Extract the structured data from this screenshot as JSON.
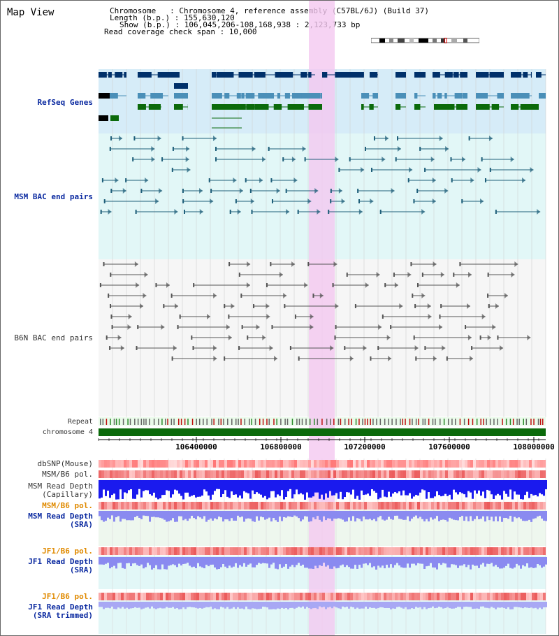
{
  "view_title": "Map View",
  "info": {
    "chromosome_line": "Chromosome   : Chromosome 4, reference assembly (C57BL/6J) (Build 37)",
    "length_line": "Length (b.p.) : 155,630,120",
    "show_line": "Show (b.p.) : 106,045,206-108,168,938 : 2,123,733 bp",
    "coverage_line": "Read coverage check span : 10,000"
  },
  "tracks": {
    "refseq": "RefSeq Genes",
    "msm_bac": "MSM BAC end pairs",
    "b6n_bac": "B6N BAC end pairs",
    "repeat": "Repeat",
    "chromosome": "chromosome 4",
    "dbsnp": "dbSNP(Mouse)",
    "msm_b6_pol_1": "MSM/B6 pol.",
    "msm_read_depth_cap_1": "MSM Read Depth",
    "msm_read_depth_cap_2": "(Capillary)",
    "msm_b6_pol_2": "MSM/B6 pol.",
    "msm_read_depth_sra_1": "MSM Read Depth",
    "msm_read_depth_sra_2": "(SRA)",
    "jf1_b6_pol_1": "JF1/B6 pol.",
    "jf1_read_depth_sra_1": "JF1 Read Depth",
    "jf1_read_depth_sra_2": "(SRA)",
    "jf1_b6_pol_2": "JF1/B6 pol.",
    "jf1_read_depth_trim_1": "JF1 Read Depth",
    "jf1_read_depth_trim_2": "(SRA trimmed)"
  },
  "axis_ticks": [
    "106400000",
    "106800000",
    "107200000",
    "107600000",
    "108000000"
  ],
  "colors": {
    "refseq_navy": "#00306a",
    "refseq_steel": "#4a8fb8",
    "refseq_green": "#0b6a0b",
    "bac_msm": "#1f5f7a",
    "bac_b6n": "#555555",
    "highlight": "#f4c8f0",
    "chromosome_bar": "#0b6a0b",
    "depth_blue": "#1a1aee",
    "depth_sra": "#8a8af0"
  }
}
